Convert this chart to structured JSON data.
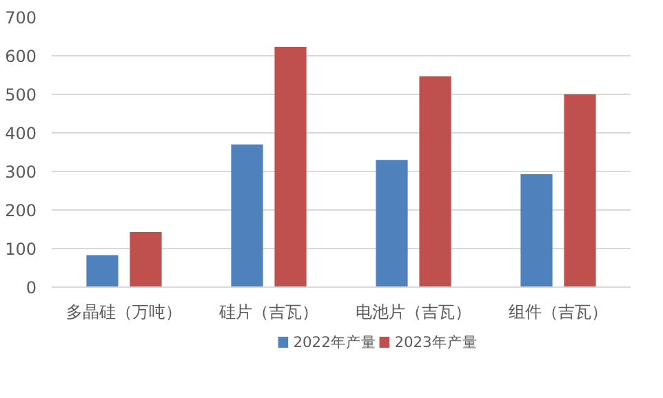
{
  "chart_data": {
    "type": "bar",
    "categories": [
      "多晶硅（万吨）",
      "硅片（吉瓦）",
      "电池片（吉瓦）",
      "组件（吉瓦）"
    ],
    "series": [
      {
        "name": "2022年产量",
        "color": "#4f81bd",
        "values": [
          83,
          370,
          330,
          293
        ]
      },
      {
        "name": "2023年产量",
        "color": "#c0504d",
        "values": [
          143,
          623,
          547,
          500
        ]
      }
    ],
    "ylim": [
      0,
      700
    ],
    "yticks": [
      0,
      100,
      200,
      300,
      400,
      500,
      600,
      700
    ],
    "grid": "y",
    "legend": "bottom"
  }
}
